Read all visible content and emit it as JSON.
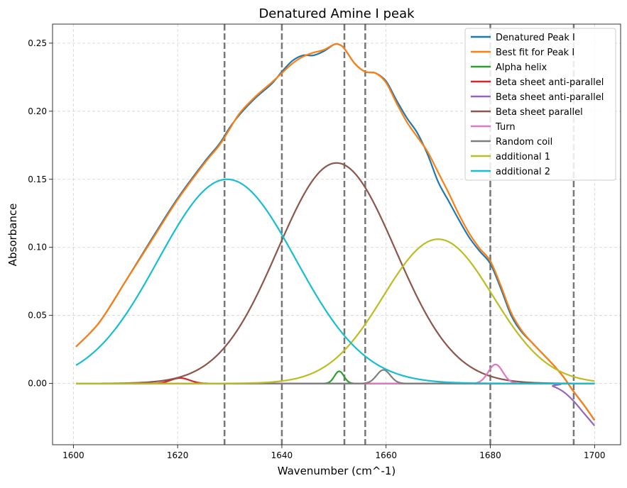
{
  "chart_data": {
    "type": "line",
    "title": "Denatured Amine I peak",
    "xlabel": "Wavenumber (cm^-1)",
    "ylabel": "Absorbance",
    "xlim": [
      1596,
      1705
    ],
    "ylim": [
      -0.045,
      0.264
    ],
    "xticks": [
      1600,
      1620,
      1640,
      1660,
      1680,
      1700
    ],
    "yticks": [
      0.0,
      0.05,
      0.1,
      0.15,
      0.2,
      0.25
    ],
    "ytick_labels": [
      "0.00",
      "0.05",
      "0.10",
      "0.15",
      "0.20",
      "0.25"
    ],
    "grid": true,
    "legend_position": "top-right",
    "vertical_lines": [
      1629,
      1640,
      1652,
      1656,
      1680,
      1696
    ],
    "series": [
      {
        "name": "Denatured Peak I",
        "color": "#1f77b4",
        "x": [
          1600.5,
          1605,
          1610,
          1615,
          1620,
          1625,
          1628,
          1630,
          1632,
          1635,
          1638,
          1640,
          1642,
          1644,
          1646,
          1648,
          1650,
          1651,
          1652,
          1654,
          1656,
          1658,
          1660,
          1662,
          1664,
          1666,
          1668,
          1670,
          1672,
          1674,
          1676,
          1678,
          1680,
          1682,
          1684,
          1686,
          1688,
          1690,
          1692,
          1694,
          1696,
          1698,
          1700
        ],
        "y": [
          0.027,
          0.045,
          0.075,
          0.106,
          0.136,
          0.162,
          0.176,
          0.188,
          0.198,
          0.21,
          0.22,
          0.229,
          0.237,
          0.241,
          0.241,
          0.244,
          0.249,
          0.249,
          0.246,
          0.235,
          0.229,
          0.228,
          0.222,
          0.208,
          0.195,
          0.184,
          0.168,
          0.148,
          0.134,
          0.12,
          0.107,
          0.097,
          0.088,
          0.07,
          0.05,
          0.038,
          0.03,
          0.022,
          0.014,
          0.005,
          -0.006,
          -0.016,
          -0.027
        ]
      },
      {
        "name": "Best fit for Peak I",
        "color": "#ff7f0e",
        "x": [
          1600.5,
          1605,
          1610,
          1615,
          1620,
          1625,
          1628,
          1630,
          1632,
          1635,
          1638,
          1640,
          1642,
          1644,
          1646,
          1648,
          1650,
          1651,
          1652,
          1654,
          1656,
          1658,
          1660,
          1662,
          1664,
          1666,
          1668,
          1670,
          1672,
          1674,
          1676,
          1678,
          1680,
          1682,
          1684,
          1686,
          1688,
          1690,
          1692,
          1694,
          1696,
          1698,
          1700
        ],
        "y": [
          0.027,
          0.045,
          0.075,
          0.105,
          0.135,
          0.161,
          0.175,
          0.187,
          0.199,
          0.211,
          0.221,
          0.228,
          0.235,
          0.24,
          0.243,
          0.245,
          0.249,
          0.249,
          0.246,
          0.235,
          0.229,
          0.228,
          0.221,
          0.206,
          0.192,
          0.181,
          0.17,
          0.155,
          0.14,
          0.124,
          0.11,
          0.099,
          0.09,
          0.072,
          0.052,
          0.039,
          0.03,
          0.022,
          0.014,
          0.005,
          -0.006,
          -0.016,
          -0.027
        ]
      },
      {
        "name": "Alpha helix",
        "color": "#2ca02c",
        "gauss": {
          "a": 0.009,
          "mu": 1651,
          "sigma": 0.9
        },
        "range": [
          1600.5,
          1700
        ]
      },
      {
        "name": "Beta sheet anti-parallel",
        "color": "#d62728",
        "gauss": {
          "a": 0.004,
          "mu": 1620.5,
          "sigma": 1.8
        },
        "range": [
          1600.5,
          1700
        ]
      },
      {
        "name": "Beta sheet anti-parallel",
        "color": "#9467bd",
        "x": [
          1600.5,
          1650,
          1690,
          1692,
          1694,
          1696,
          1698,
          1700
        ],
        "y": [
          0.0,
          0.0,
          0.0,
          -0.002,
          -0.006,
          -0.013,
          -0.022,
          -0.031
        ]
      },
      {
        "name": "Beta sheet parallel",
        "color": "#8c564b",
        "gauss": {
          "a": 0.162,
          "mu": 1650.5,
          "sigma": 11.3
        },
        "range": [
          1600.5,
          1700
        ]
      },
      {
        "name": "Turn",
        "color": "#e377c2",
        "gauss": {
          "a": 0.014,
          "mu": 1681,
          "sigma": 1.4
        },
        "range": [
          1600.5,
          1700
        ]
      },
      {
        "name": "Random coil",
        "color": "#7f7f7f",
        "gauss": {
          "a": 0.01,
          "mu": 1659.5,
          "sigma": 1.3
        },
        "range": [
          1600.5,
          1700
        ]
      },
      {
        "name": "additional 1",
        "color": "#bcbd22",
        "gauss": {
          "a": 0.106,
          "mu": 1670,
          "sigma": 10.5
        },
        "range": [
          1600.5,
          1700
        ]
      },
      {
        "name": "additional 2",
        "color": "#17becf",
        "gauss": {
          "a": 0.15,
          "mu": 1629.5,
          "sigma": 13.2
        },
        "range": [
          1600.5,
          1700
        ]
      }
    ]
  }
}
